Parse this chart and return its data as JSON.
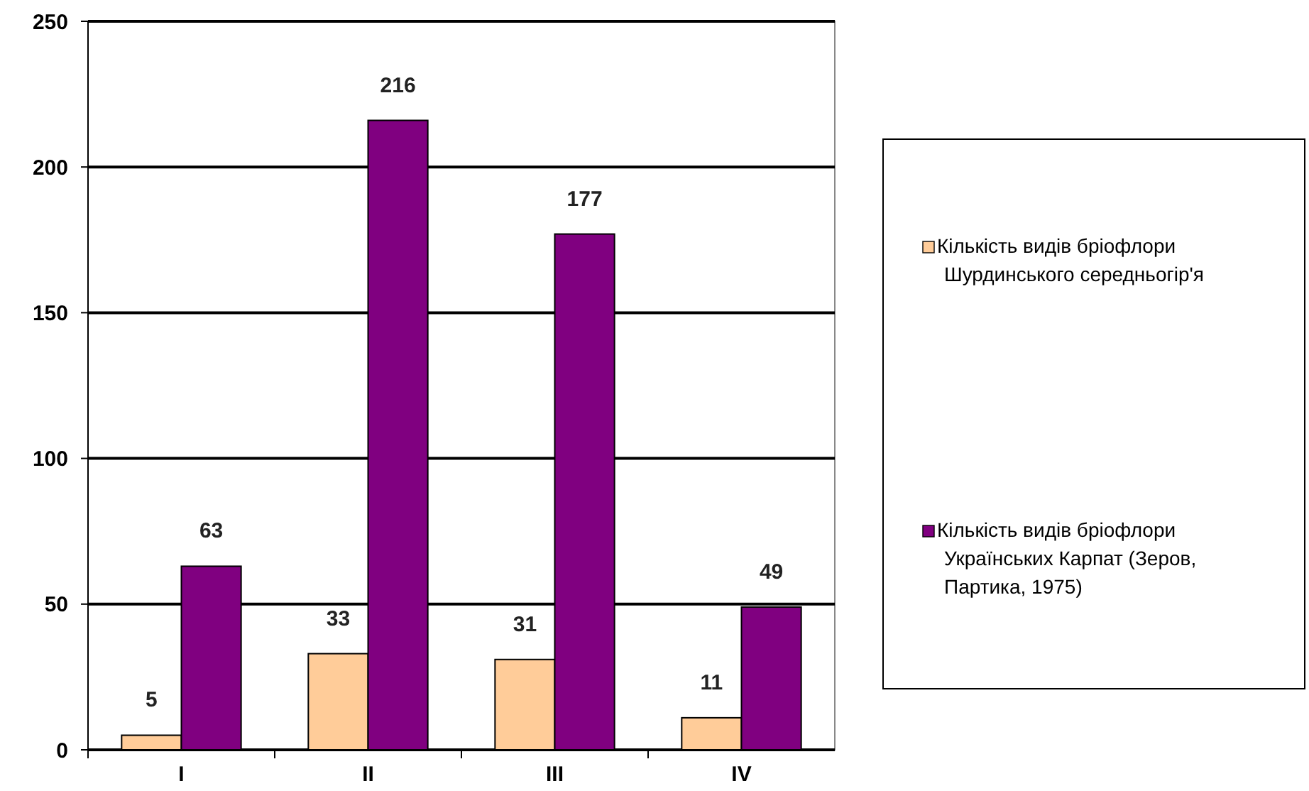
{
  "chart_data": {
    "type": "bar",
    "categories": [
      "I",
      "II",
      "III",
      "IV"
    ],
    "series": [
      {
        "name": "Кількість видів бріофлори Шурдинського середньогір'я",
        "color": "#ffcc99",
        "values": [
          5,
          33,
          31,
          11
        ]
      },
      {
        "name": "Кількість видів бріофлори Українських Карпат (Зеров, Партика, 1975)",
        "color": "#800080",
        "values": [
          63,
          216,
          177,
          49
        ]
      }
    ],
    "ylim": [
      0,
      250
    ],
    "yticks": [
      0,
      50,
      100,
      150,
      200,
      250
    ],
    "grid": "y",
    "legend": "right",
    "data_labels": true
  }
}
